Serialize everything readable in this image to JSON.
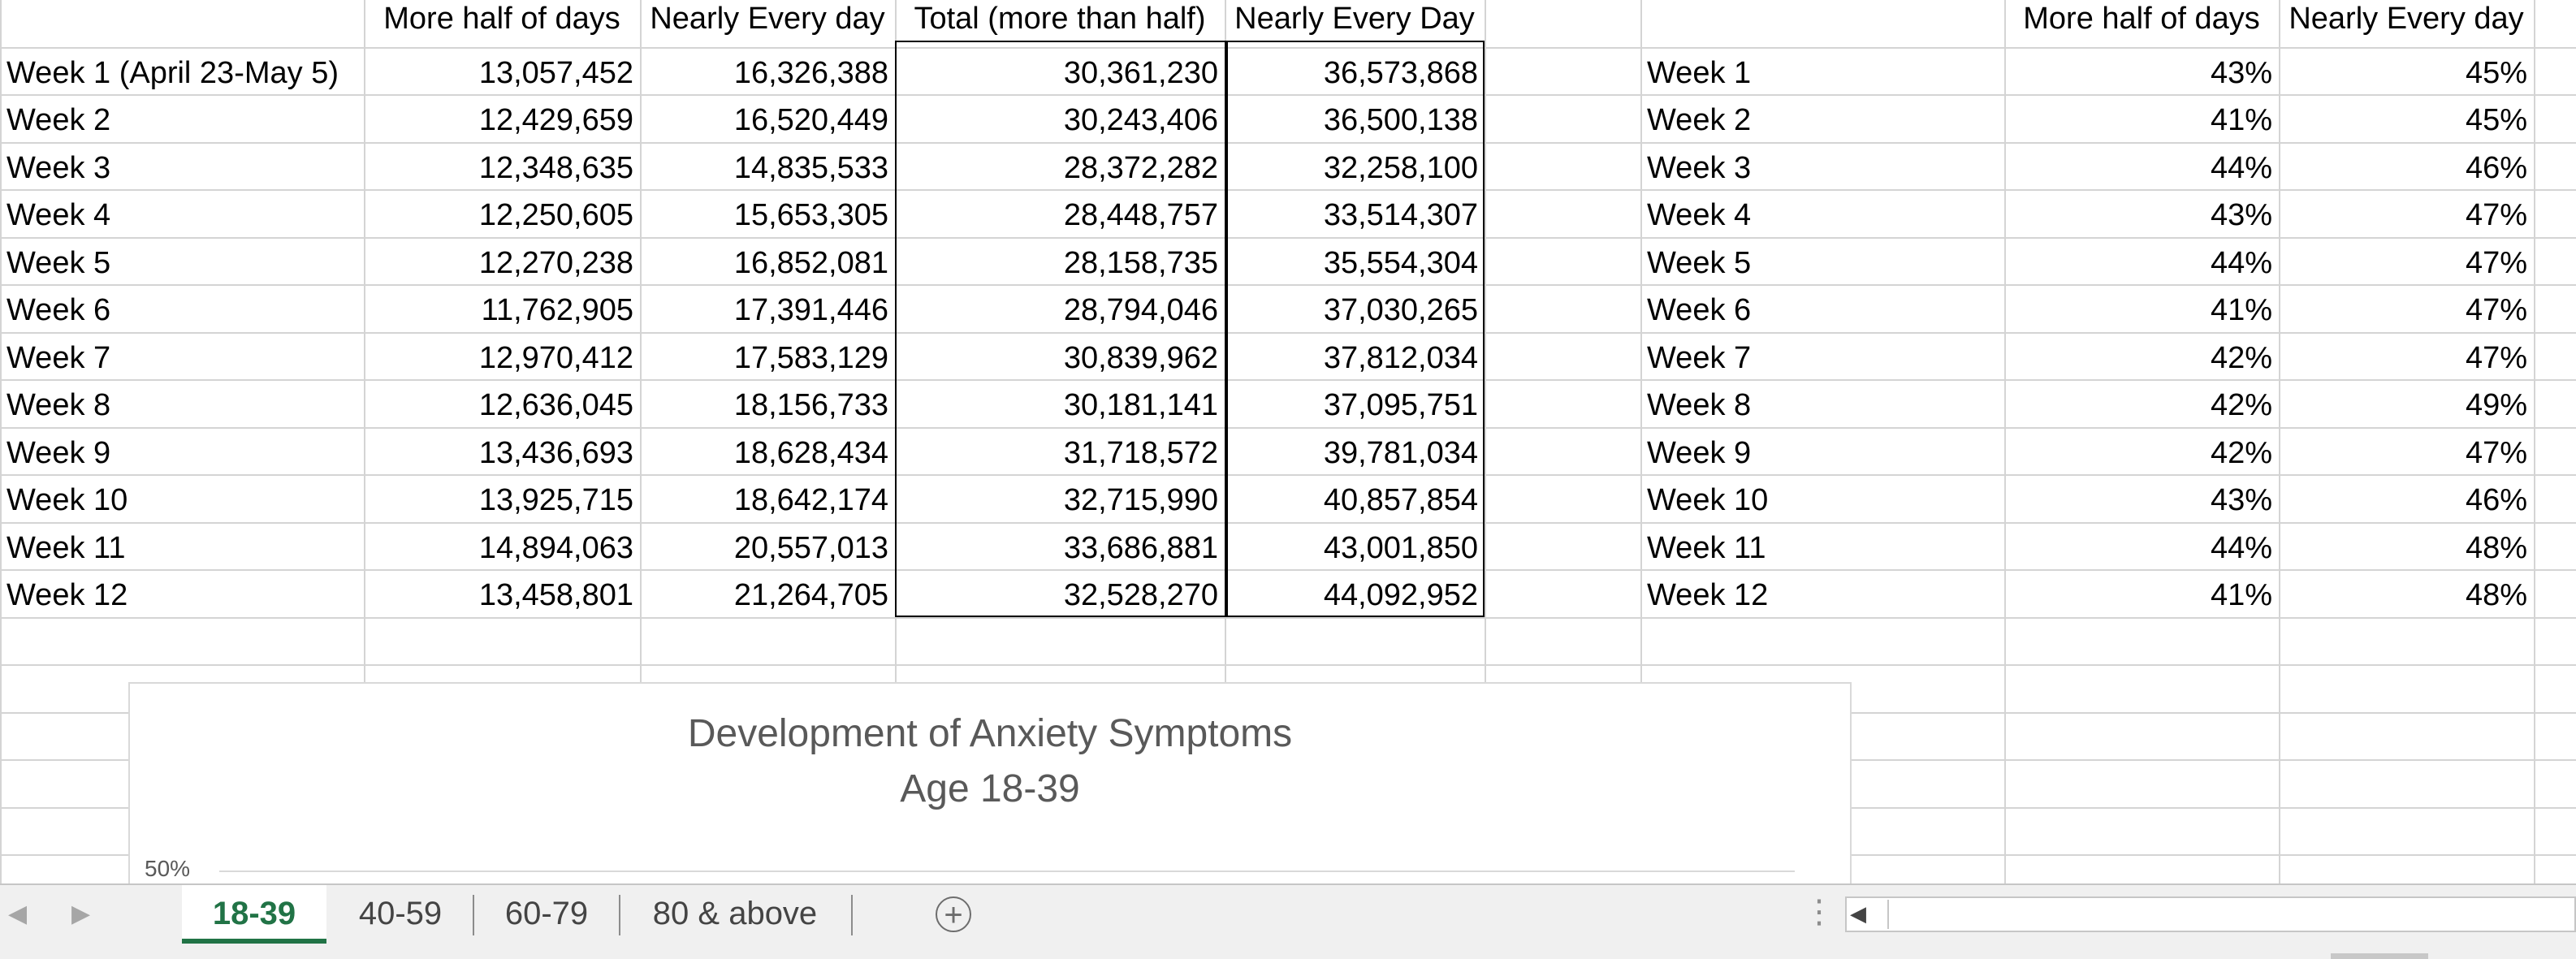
{
  "left_table": {
    "headers": [
      "",
      "More half of days",
      "Nearly Every day",
      "Total (more than half)",
      "Nearly Every Day"
    ],
    "rows": [
      [
        "Week 1 (April 23-May 5)",
        "13,057,452",
        "16,326,388",
        "30,361,230",
        "36,573,868"
      ],
      [
        "Week  2",
        "12,429,659",
        "16,520,449",
        "30,243,406",
        "36,500,138"
      ],
      [
        "Week 3",
        "12,348,635",
        "14,835,533",
        "28,372,282",
        "32,258,100"
      ],
      [
        "Week 4",
        "12,250,605",
        "15,653,305",
        "28,448,757",
        "33,514,307"
      ],
      [
        "Week 5",
        "12,270,238",
        "16,852,081",
        "28,158,735",
        "35,554,304"
      ],
      [
        "Week 6",
        "11,762,905",
        "17,391,446",
        "28,794,046",
        "37,030,265"
      ],
      [
        "Week 7",
        "12,970,412",
        "17,583,129",
        "30,839,962",
        "37,812,034"
      ],
      [
        "Week 8",
        "12,636,045",
        "18,156,733",
        "30,181,141",
        "37,095,751"
      ],
      [
        "Week 9",
        "13,436,693",
        "18,628,434",
        "31,718,572",
        "39,781,034"
      ],
      [
        "Week 10",
        "13,925,715",
        "18,642,174",
        "32,715,990",
        "40,857,854"
      ],
      [
        "Week 11",
        "14,894,063",
        "20,557,013",
        "33,686,881",
        "43,001,850"
      ],
      [
        "Week 12",
        "13,458,801",
        "21,264,705",
        "32,528,270",
        "44,092,952"
      ]
    ]
  },
  "right_table": {
    "headers": [
      "",
      "More half of days",
      "Nearly Every day"
    ],
    "rows": [
      [
        "Week 1",
        "43%",
        "45%"
      ],
      [
        "Week  2",
        "41%",
        "45%"
      ],
      [
        "Week 3",
        "44%",
        "46%"
      ],
      [
        "Week 4",
        "43%",
        "47%"
      ],
      [
        "Week 5",
        "44%",
        "47%"
      ],
      [
        "Week 6",
        "41%",
        "47%"
      ],
      [
        "Week 7",
        "42%",
        "47%"
      ],
      [
        "Week 8",
        "42%",
        "49%"
      ],
      [
        "Week 9",
        "42%",
        "47%"
      ],
      [
        "Week 10",
        "43%",
        "46%"
      ],
      [
        "Week 11",
        "44%",
        "48%"
      ],
      [
        "Week 12",
        "41%",
        "48%"
      ]
    ]
  },
  "chart": {
    "title_line1": "Development of Anxiety Symptoms",
    "title_line2": "Age 18-39",
    "visible_y_tick": "50%"
  },
  "sheet_tabs": {
    "tabs": [
      "18-39",
      "40-59",
      "60-79",
      "80 & above"
    ],
    "active": "18-39"
  },
  "icons": {
    "prev_sheet": "chevron-left-icon",
    "next_sheet": "chevron-right-icon",
    "new_sheet": "plus-circle-icon",
    "more": "vertical-ellipsis-icon",
    "scroll_left": "scroll-left-arrow-icon"
  },
  "colors": {
    "active_tab": "#217346",
    "gridline": "#d4d4d4",
    "chart_title": "#595959"
  }
}
